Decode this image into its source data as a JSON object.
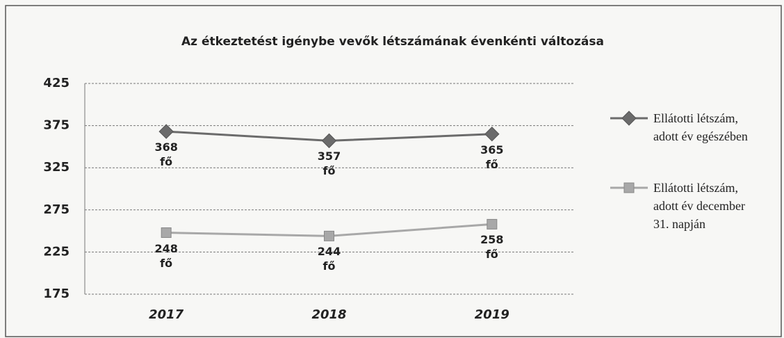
{
  "chart_data": {
    "type": "line",
    "title": "Az étkeztetést igénybe vevők  létszámának évenkénti változása",
    "categories": [
      "2017",
      "2018",
      "2019"
    ],
    "series": [
      {
        "name": "Ellátotti létszám, adott év egészében",
        "color": "#6b6b6b",
        "marker": "diamond",
        "values": [
          368,
          357,
          365
        ],
        "value_labels": [
          "368 fő",
          "357 fő",
          "365 fő"
        ]
      },
      {
        "name": "Ellátotti létszám, adott év december 31. napján",
        "color": "#a8a8a8",
        "marker": "square",
        "values": [
          248,
          244,
          258
        ],
        "value_labels": [
          "248 fő",
          "244 fő",
          "258 fő"
        ]
      }
    ],
    "ylim": [
      175,
      425
    ],
    "yticks": [
      175,
      225,
      275,
      325,
      375,
      425
    ],
    "grid": true,
    "legend": "right"
  }
}
